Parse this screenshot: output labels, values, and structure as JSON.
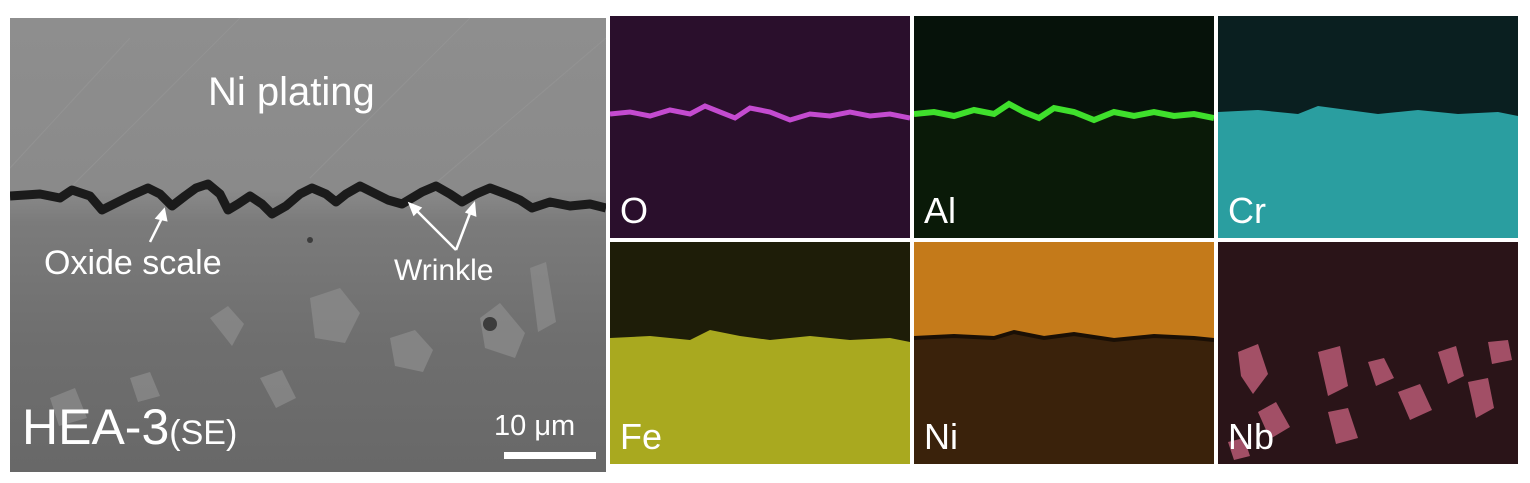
{
  "sem_image": {
    "region_label": "Ni plating",
    "annotation_oxide": "Oxide scale",
    "annotation_wrinkle": "Wrinkle",
    "sample_name": "HEA-3",
    "imaging_mode": "(SE)",
    "scale_bar": "10 μm"
  },
  "eds_maps": [
    {
      "element": "O",
      "color": "#b03ab8"
    },
    {
      "element": "Al",
      "color": "#33cc22"
    },
    {
      "element": "Cr",
      "color": "#2fa9a9"
    },
    {
      "element": "Fe",
      "color": "#b7b721"
    },
    {
      "element": "Ni",
      "color": "#c47a1a"
    },
    {
      "element": "Nb",
      "color": "#c25a7a"
    }
  ]
}
